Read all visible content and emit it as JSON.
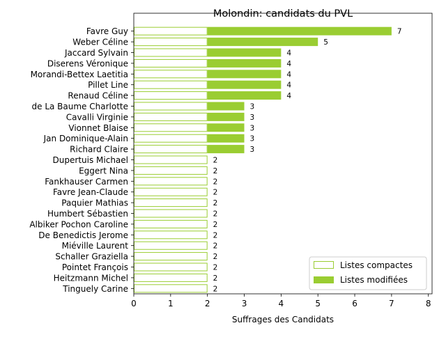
{
  "chart_data": {
    "type": "bar",
    "orientation": "horizontal",
    "stacked": true,
    "title": "Molondin: candidats du PVL",
    "xlabel": "Suffrages des Candidats",
    "ylabel": "",
    "xlim": [
      0,
      8.1
    ],
    "xticks": [
      0,
      1,
      2,
      3,
      4,
      5,
      6,
      7,
      8
    ],
    "grid": false,
    "legend_position": "lower-right",
    "categories": [
      "Favre Guy",
      "Weber Céline",
      "Jaccard Sylvain",
      "Diserens Véronique",
      "Morandi-Bettex Laetitia",
      "Pillet Line",
      "Renaud Céline",
      "de La Baume Charlotte",
      "Cavalli Virginie",
      "Vionnet Blaise",
      "Jan Dominique-Alain",
      "Richard Claire",
      "Dupertuis Michael",
      "Eggert Nina",
      "Fankhauser Carmen",
      "Favre Jean-Claude",
      "Paquier Mathias",
      "Humbert Sébastien",
      "Albiker Pochon Caroline",
      "De Benedictis Jerome",
      "Miéville Laurent",
      "Schaller Graziella",
      "Pointet François",
      "Heitzmann Michel",
      "Tinguely Carine"
    ],
    "series": [
      {
        "name": "Listes compactes",
        "style": "outline",
        "color": "#9acd32",
        "values": [
          2,
          2,
          2,
          2,
          2,
          2,
          2,
          2,
          2,
          2,
          2,
          2,
          2,
          2,
          2,
          2,
          2,
          2,
          2,
          2,
          2,
          2,
          2,
          2,
          2
        ]
      },
      {
        "name": "Listes modifiées",
        "style": "filled",
        "color": "#9acd32",
        "values": [
          5,
          3,
          2,
          2,
          2,
          2,
          2,
          1,
          1,
          1,
          1,
          1,
          0,
          0,
          0,
          0,
          0,
          0,
          0,
          0,
          0,
          0,
          0,
          0,
          0
        ]
      }
    ],
    "totals": [
      7,
      5,
      4,
      4,
      4,
      4,
      4,
      3,
      3,
      3,
      3,
      3,
      2,
      2,
      2,
      2,
      2,
      2,
      2,
      2,
      2,
      2,
      2,
      2,
      2
    ]
  }
}
